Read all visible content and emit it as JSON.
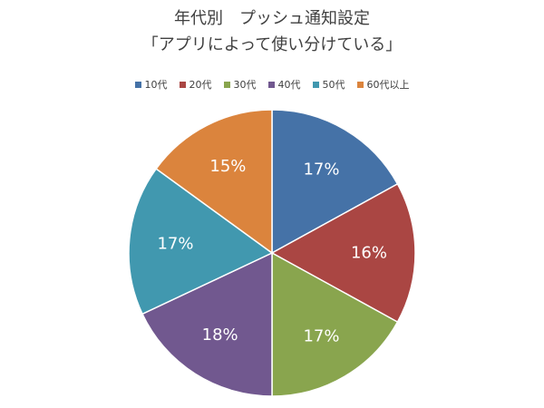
{
  "chart_title": {
    "line1": "年代別　プッシュ通知設定",
    "line2": "「アプリによって使い分けている」"
  },
  "chart_data": {
    "type": "pie",
    "title": "年代別　プッシュ通知設定「アプリによって使い分けている」",
    "categories": [
      "10代",
      "20代",
      "30代",
      "40代",
      "50代",
      "60代以上"
    ],
    "values": [
      17,
      16,
      17,
      18,
      17,
      15
    ],
    "data_labels": [
      "17%",
      "16%",
      "17%",
      "18%",
      "17%",
      "15%"
    ],
    "colors": [
      "#4572A7",
      "#AA4643",
      "#89A54E",
      "#71588F",
      "#4198AF",
      "#DB843D"
    ],
    "legend_position": "top",
    "start_angle_deg": 0,
    "direction": "clockwise"
  }
}
